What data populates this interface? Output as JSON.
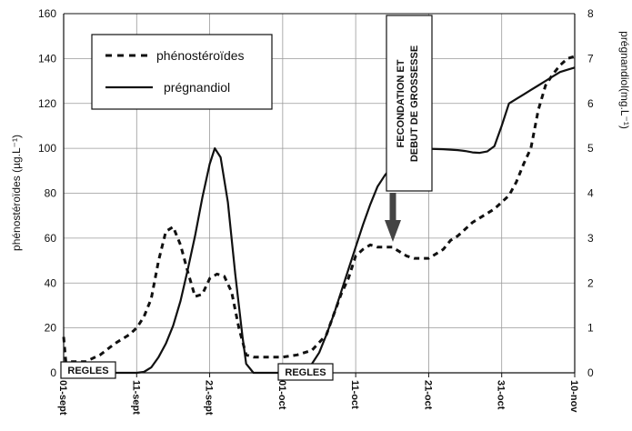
{
  "chart_data": {
    "type": "line",
    "title": "",
    "xlabel": "",
    "ylabel": "phénostéroïdes (µg.L⁻¹)",
    "y2label": "prégnandiol(mg.L⁻¹)",
    "x_ticks": [
      "01-sept",
      "11-sept",
      "21-sept",
      "01-oct",
      "11-oct",
      "21-oct",
      "31-oct",
      "10-nov"
    ],
    "xlim_days": [
      0,
      70
    ],
    "ylim": [
      0,
      160
    ],
    "y_ticks": [
      0,
      20,
      40,
      60,
      80,
      100,
      120,
      140,
      160
    ],
    "y2lim": [
      0,
      8
    ],
    "y2_ticks": [
      0,
      1,
      2,
      3,
      4,
      5,
      6,
      7,
      8
    ],
    "grid": true,
    "legend_position": "top-left",
    "series": [
      {
        "name": "phénostéroïdes",
        "axis": "left",
        "style": "dashed",
        "color": "#111111",
        "x": [
          0,
          0.3,
          1,
          3,
          5,
          7,
          9,
          10,
          11,
          12,
          13,
          14,
          15,
          16,
          17,
          18,
          19,
          20,
          21,
          22,
          23,
          24,
          25,
          26,
          27,
          28,
          29,
          30,
          32,
          34,
          36,
          38,
          39,
          40,
          41,
          42,
          43,
          44,
          45,
          46,
          47,
          48,
          49,
          50,
          51,
          52,
          53,
          54,
          55,
          56,
          57,
          58,
          59,
          60,
          61,
          62,
          63,
          64,
          65,
          66,
          67,
          68,
          69,
          70
        ],
        "values": [
          16,
          5,
          5,
          5,
          8,
          13,
          17,
          20,
          25,
          33,
          50,
          63,
          65,
          57,
          45,
          34,
          35,
          42,
          44,
          43,
          36,
          20,
          8,
          7,
          7,
          7,
          7,
          7,
          8,
          10,
          17,
          35,
          42,
          52,
          55,
          57,
          56,
          56,
          56,
          54,
          52,
          51,
          51,
          51,
          53,
          55,
          59,
          61,
          64,
          67,
          69,
          71,
          73,
          76,
          79,
          85,
          93,
          100,
          117,
          128,
          133,
          137,
          140,
          141
        ]
      },
      {
        "name": "prégnandiol",
        "axis": "right",
        "style": "solid",
        "color": "#111111",
        "x": [
          0,
          8,
          9,
          10,
          11,
          12,
          13,
          14,
          15,
          16,
          17,
          18,
          19,
          20,
          20.7,
          21.5,
          22.5,
          23.5,
          24.5,
          25,
          26,
          28,
          30,
          31,
          32,
          33,
          34,
          35,
          36,
          37,
          38,
          39,
          40,
          41,
          42,
          43,
          44,
          45,
          46,
          47,
          48,
          49,
          50,
          52,
          53,
          54,
          55,
          56,
          57,
          58,
          59,
          60,
          61,
          62,
          63,
          63.5,
          64,
          65,
          66,
          67,
          68,
          69,
          70
        ],
        "values": [
          0,
          0,
          0,
          0,
          0.02,
          0.12,
          0.35,
          0.65,
          1.05,
          1.6,
          2.3,
          3.05,
          3.9,
          4.65,
          5.0,
          4.8,
          3.8,
          2.2,
          0.8,
          0.2,
          0,
          0,
          0,
          0,
          0.03,
          0.08,
          0.2,
          0.45,
          0.85,
          1.3,
          1.8,
          2.3,
          2.8,
          3.3,
          3.75,
          4.15,
          4.4,
          4.6,
          4.8,
          4.9,
          4.96,
          4.98,
          4.99,
          4.98,
          4.97,
          4.96,
          4.94,
          4.91,
          4.9,
          4.93,
          5.05,
          5.5,
          6.0,
          6.1,
          6.2,
          6.25,
          6.3,
          6.4,
          6.5,
          6.6,
          6.7,
          6.75,
          6.8
        ]
      }
    ],
    "annotations": [
      {
        "text": "REGLES",
        "x_day": 0
      },
      {
        "text": "REGLES",
        "x_day": 30
      },
      {
        "text": "FECONDATION ET DEBUT DE GROSSESSE",
        "x_day": 44,
        "pointer": "arrow-down"
      }
    ]
  },
  "legend": {
    "items": [
      {
        "label": "phénostéroïdes",
        "style": "dashed"
      },
      {
        "label": "prégnandiol",
        "style": "solid"
      }
    ]
  },
  "annotation_texts": {
    "regles_1": "REGLES",
    "regles_2": "REGLES",
    "fecondation_line1": "FECONDATION  ET",
    "fecondation_line2": "DEBUT DE GROSSESSE"
  }
}
